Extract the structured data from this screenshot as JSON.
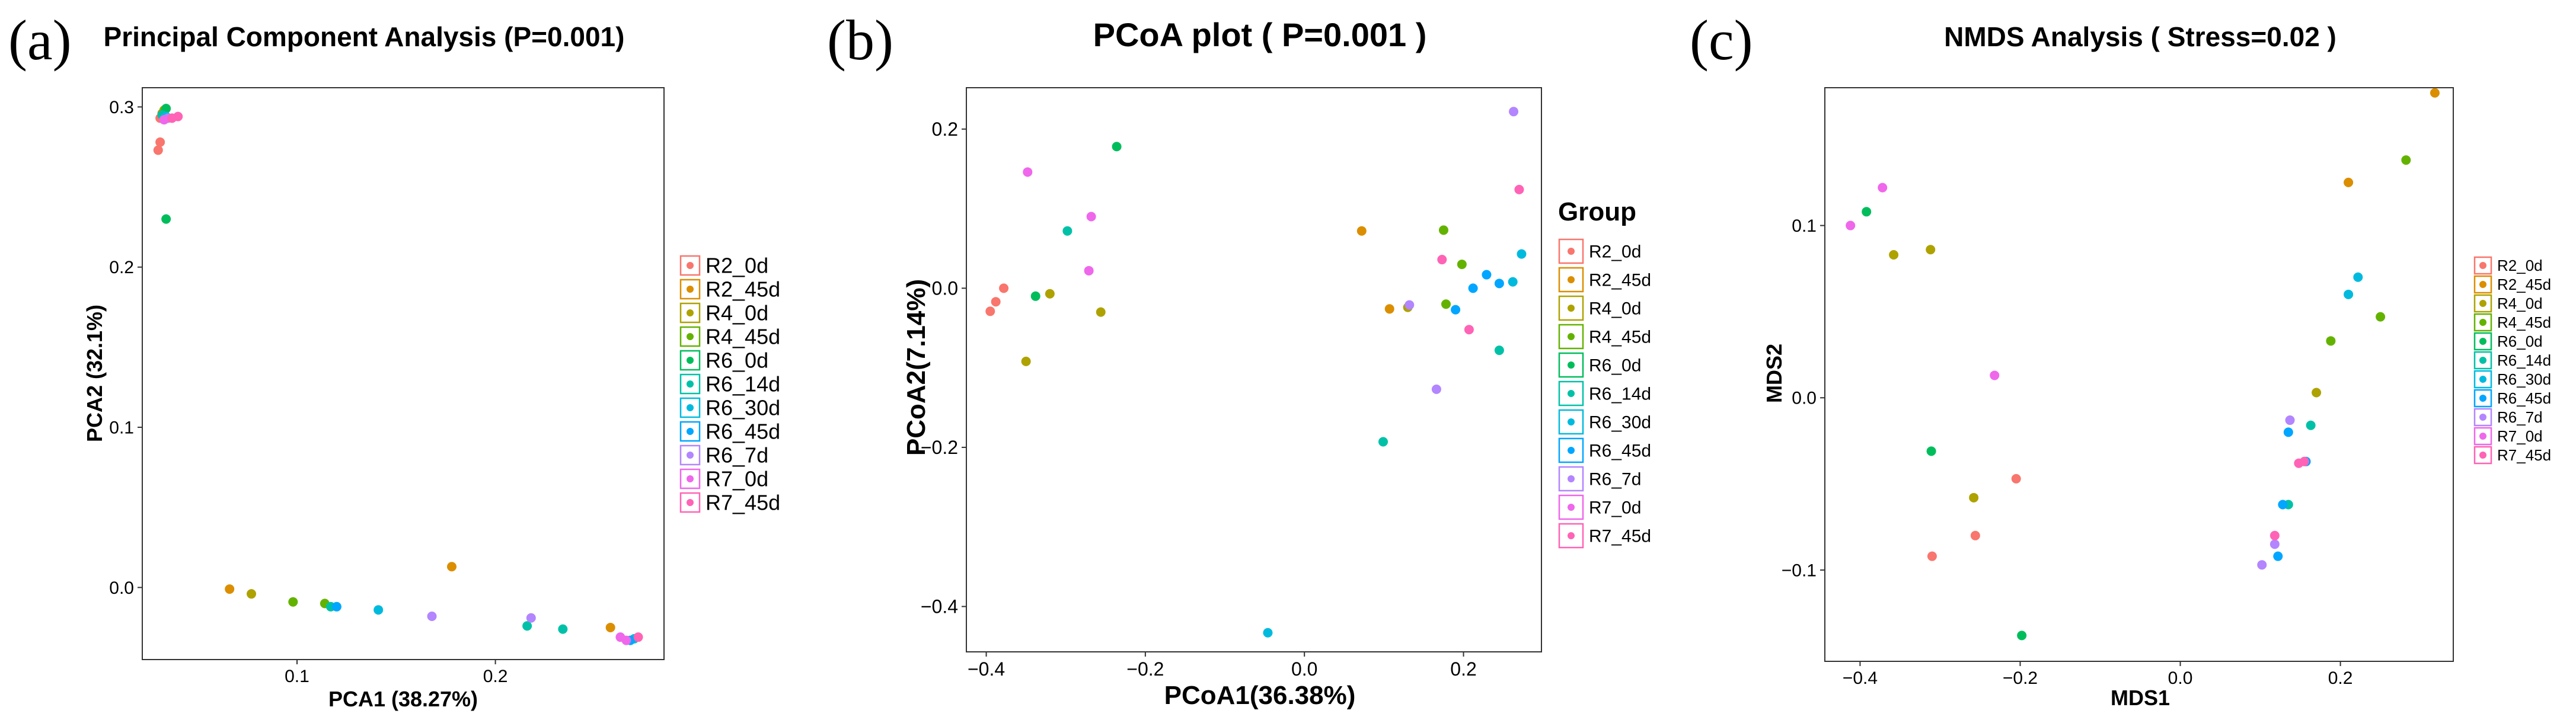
{
  "colors": {
    "R2_0d": "#F8766D",
    "R2_45d": "#DB8E00",
    "R4_0d": "#AEA200",
    "R4_45d": "#64B200",
    "R6_0d": "#00BD5C",
    "R6_14d": "#00C1A7",
    "R6_30d": "#00BADE",
    "R6_45d": "#00A6FF",
    "R6_7d": "#B385FF",
    "R7_0d": "#EF67EB",
    "R7_45d": "#FF63B6"
  },
  "chart_data": [
    {
      "panel_label": "(a)",
      "type": "scatter",
      "title": "Principal Component Analysis (P=0.001)",
      "xlabel": "PCA1 (38.27%)",
      "ylabel": "PCA2 (32.1%)",
      "xlim": [
        0.022,
        0.285
      ],
      "ylim": [
        -0.045,
        0.312
      ],
      "xticks": [
        0.1,
        0.2
      ],
      "xtick_labels": [
        "0.1",
        "0.2"
      ],
      "yticks": [
        0.0,
        0.1,
        0.2,
        0.3
      ],
      "ytick_labels": [
        "0.0",
        "0.1",
        "0.2",
        "0.3"
      ],
      "legend_title": "",
      "legend_position": "right",
      "legend": [
        "R2_0d",
        "R2_45d",
        "R4_0d",
        "R4_45d",
        "R6_0d",
        "R6_14d",
        "R6_30d",
        "R6_45d",
        "R6_7d",
        "R7_0d",
        "R7_45d"
      ],
      "points": [
        {
          "x": 0.03,
          "y": 0.273,
          "group": "R2_0d"
        },
        {
          "x": 0.031,
          "y": 0.278,
          "group": "R2_0d"
        },
        {
          "x": 0.031,
          "y": 0.293,
          "group": "R2_0d"
        },
        {
          "x": 0.032,
          "y": 0.296,
          "group": "R2_45d"
        },
        {
          "x": 0.033,
          "y": 0.298,
          "group": "R4_0d"
        },
        {
          "x": 0.033,
          "y": 0.297,
          "group": "R4_45d"
        },
        {
          "x": 0.034,
          "y": 0.299,
          "group": "R6_0d"
        },
        {
          "x": 0.034,
          "y": 0.23,
          "group": "R6_0d"
        },
        {
          "x": 0.032,
          "y": 0.295,
          "group": "R6_14d"
        },
        {
          "x": 0.034,
          "y": 0.294,
          "group": "R6_30d"
        },
        {
          "x": 0.035,
          "y": 0.293,
          "group": "R6_7d"
        },
        {
          "x": 0.033,
          "y": 0.292,
          "group": "R7_0d"
        },
        {
          "x": 0.037,
          "y": 0.293,
          "group": "R7_45d"
        },
        {
          "x": 0.04,
          "y": 0.294,
          "group": "R7_45d"
        },
        {
          "x": 0.066,
          "y": -0.001,
          "group": "R2_45d"
        },
        {
          "x": 0.178,
          "y": 0.013,
          "group": "R2_45d"
        },
        {
          "x": 0.258,
          "y": -0.025,
          "group": "R2_45d"
        },
        {
          "x": 0.077,
          "y": -0.004,
          "group": "R4_0d"
        },
        {
          "x": 0.098,
          "y": -0.009,
          "group": "R4_45d"
        },
        {
          "x": 0.114,
          "y": -0.01,
          "group": "R4_45d"
        },
        {
          "x": 0.117,
          "y": -0.012,
          "group": "R6_14d"
        },
        {
          "x": 0.216,
          "y": -0.024,
          "group": "R6_14d"
        },
        {
          "x": 0.234,
          "y": -0.026,
          "group": "R6_14d"
        },
        {
          "x": 0.141,
          "y": -0.014,
          "group": "R6_30d"
        },
        {
          "x": 0.27,
          "y": -0.032,
          "group": "R6_30d"
        },
        {
          "x": 0.12,
          "y": -0.012,
          "group": "R6_45d"
        },
        {
          "x": 0.268,
          "y": -0.033,
          "group": "R6_45d"
        },
        {
          "x": 0.168,
          "y": -0.018,
          "group": "R6_7d"
        },
        {
          "x": 0.218,
          "y": -0.019,
          "group": "R6_7d"
        },
        {
          "x": 0.263,
          "y": -0.031,
          "group": "R7_0d"
        },
        {
          "x": 0.266,
          "y": -0.033,
          "group": "R7_0d"
        },
        {
          "x": 0.272,
          "y": -0.031,
          "group": "R7_45d"
        }
      ]
    },
    {
      "panel_label": "(b)",
      "type": "scatter",
      "title": "PCoA plot ( P=0.001 )",
      "xlabel": "PCoA1(36.38%)",
      "ylabel": "PCoA2(7.14%)",
      "xlim": [
        -0.425,
        0.298
      ],
      "ylim": [
        -0.457,
        0.252
      ],
      "xticks": [
        -0.4,
        -0.2,
        0.0,
        0.2
      ],
      "xtick_labels": [
        "−0.4",
        "−0.2",
        "0.0",
        "0.2"
      ],
      "yticks": [
        -0.4,
        -0.2,
        0.0,
        0.2
      ],
      "ytick_labels": [
        "−0.4",
        "−0.2",
        "0.0",
        "0.2"
      ],
      "legend_title": "Group",
      "legend_position": "right",
      "legend": [
        "R2_0d",
        "R2_45d",
        "R4_0d",
        "R4_45d",
        "R6_0d",
        "R6_14d",
        "R6_30d",
        "R6_45d",
        "R6_7d",
        "R7_0d",
        "R7_45d"
      ],
      "points": [
        {
          "x": -0.395,
          "y": -0.029,
          "group": "R2_0d"
        },
        {
          "x": -0.388,
          "y": -0.017,
          "group": "R2_0d"
        },
        {
          "x": -0.378,
          "y": 0.0,
          "group": "R2_0d"
        },
        {
          "x": 0.072,
          "y": 0.072,
          "group": "R2_45d"
        },
        {
          "x": 0.107,
          "y": -0.026,
          "group": "R2_45d"
        },
        {
          "x": -0.35,
          "y": -0.092,
          "group": "R4_0d"
        },
        {
          "x": -0.32,
          "y": -0.007,
          "group": "R4_0d"
        },
        {
          "x": -0.256,
          "y": -0.03,
          "group": "R4_0d"
        },
        {
          "x": 0.13,
          "y": -0.024,
          "group": "R4_0d"
        },
        {
          "x": 0.175,
          "y": 0.073,
          "group": "R4_45d"
        },
        {
          "x": 0.178,
          "y": -0.02,
          "group": "R4_45d"
        },
        {
          "x": 0.198,
          "y": 0.03,
          "group": "R4_45d"
        },
        {
          "x": -0.338,
          "y": -0.01,
          "group": "R6_0d"
        },
        {
          "x": -0.236,
          "y": 0.178,
          "group": "R6_0d"
        },
        {
          "x": -0.298,
          "y": 0.072,
          "group": "R6_14d"
        },
        {
          "x": 0.099,
          "y": -0.193,
          "group": "R6_14d"
        },
        {
          "x": 0.245,
          "y": -0.078,
          "group": "R6_14d"
        },
        {
          "x": -0.046,
          "y": -0.433,
          "group": "R6_30d"
        },
        {
          "x": 0.262,
          "y": 0.008,
          "group": "R6_30d"
        },
        {
          "x": 0.273,
          "y": 0.043,
          "group": "R6_30d"
        },
        {
          "x": 0.19,
          "y": -0.027,
          "group": "R6_45d"
        },
        {
          "x": 0.212,
          "y": 0.0,
          "group": "R6_45d"
        },
        {
          "x": 0.229,
          "y": 0.017,
          "group": "R6_45d"
        },
        {
          "x": 0.245,
          "y": 0.006,
          "group": "R6_45d"
        },
        {
          "x": 0.132,
          "y": -0.021,
          "group": "R6_7d"
        },
        {
          "x": 0.166,
          "y": -0.127,
          "group": "R6_7d"
        },
        {
          "x": 0.263,
          "y": 0.222,
          "group": "R6_7d"
        },
        {
          "x": -0.348,
          "y": 0.146,
          "group": "R7_0d"
        },
        {
          "x": -0.268,
          "y": 0.09,
          "group": "R7_0d"
        },
        {
          "x": -0.271,
          "y": 0.022,
          "group": "R7_0d"
        },
        {
          "x": 0.173,
          "y": 0.036,
          "group": "R7_45d"
        },
        {
          "x": 0.207,
          "y": -0.052,
          "group": "R7_45d"
        },
        {
          "x": 0.27,
          "y": 0.124,
          "group": "R7_45d"
        }
      ]
    },
    {
      "panel_label": "(c)",
      "type": "scatter",
      "title": "NMDS Analysis ( Stress=0.02 )",
      "xlabel": "MDS1",
      "ylabel": "MDS2",
      "xlim": [
        -0.444,
        0.341
      ],
      "ylim": [
        -0.153,
        0.18
      ],
      "xticks": [
        -0.4,
        -0.2,
        0.0,
        0.2
      ],
      "xtick_labels": [
        "−0.4",
        "−0.2",
        "0.0",
        "0.2"
      ],
      "yticks": [
        -0.1,
        0.0,
        0.1
      ],
      "ytick_labels": [
        "−0.1",
        "0.0",
        "0.1"
      ],
      "legend_title": "",
      "legend_position": "right",
      "legend": [
        "R2_0d",
        "R2_45d",
        "R4_0d",
        "R4_45d",
        "R6_0d",
        "R6_14d",
        "R6_30d",
        "R6_45d",
        "R6_7d",
        "R7_0d",
        "R7_45d"
      ],
      "points": [
        {
          "x": -0.31,
          "y": -0.092,
          "group": "R2_0d"
        },
        {
          "x": -0.256,
          "y": -0.08,
          "group": "R2_0d"
        },
        {
          "x": -0.205,
          "y": -0.047,
          "group": "R2_0d"
        },
        {
          "x": 0.21,
          "y": 0.125,
          "group": "R2_45d"
        },
        {
          "x": 0.318,
          "y": 0.177,
          "group": "R2_45d"
        },
        {
          "x": -0.358,
          "y": 0.083,
          "group": "R4_0d"
        },
        {
          "x": -0.312,
          "y": 0.086,
          "group": "R4_0d"
        },
        {
          "x": -0.258,
          "y": -0.058,
          "group": "R4_0d"
        },
        {
          "x": 0.17,
          "y": 0.003,
          "group": "R4_0d"
        },
        {
          "x": 0.188,
          "y": 0.033,
          "group": "R4_45d"
        },
        {
          "x": 0.25,
          "y": 0.047,
          "group": "R4_45d"
        },
        {
          "x": 0.282,
          "y": 0.138,
          "group": "R4_45d"
        },
        {
          "x": -0.392,
          "y": 0.108,
          "group": "R6_0d"
        },
        {
          "x": -0.311,
          "y": -0.031,
          "group": "R6_0d"
        },
        {
          "x": -0.198,
          "y": -0.138,
          "group": "R6_0d"
        },
        {
          "x": 0.135,
          "y": -0.062,
          "group": "R6_14d"
        },
        {
          "x": 0.163,
          "y": -0.016,
          "group": "R6_14d"
        },
        {
          "x": 0.21,
          "y": 0.06,
          "group": "R6_30d"
        },
        {
          "x": 0.222,
          "y": 0.07,
          "group": "R6_30d"
        },
        {
          "x": 0.122,
          "y": -0.092,
          "group": "R6_45d"
        },
        {
          "x": 0.128,
          "y": -0.062,
          "group": "R6_45d"
        },
        {
          "x": 0.135,
          "y": -0.02,
          "group": "R6_45d"
        },
        {
          "x": 0.157,
          "y": -0.037,
          "group": "R6_45d"
        },
        {
          "x": 0.102,
          "y": -0.097,
          "group": "R6_7d"
        },
        {
          "x": 0.118,
          "y": -0.085,
          "group": "R6_7d"
        },
        {
          "x": 0.137,
          "y": -0.013,
          "group": "R6_7d"
        },
        {
          "x": -0.412,
          "y": 0.1,
          "group": "R7_0d"
        },
        {
          "x": -0.372,
          "y": 0.122,
          "group": "R7_0d"
        },
        {
          "x": -0.232,
          "y": 0.013,
          "group": "R7_0d"
        },
        {
          "x": 0.118,
          "y": -0.08,
          "group": "R7_45d"
        },
        {
          "x": 0.148,
          "y": -0.038,
          "group": "R7_45d"
        },
        {
          "x": 0.155,
          "y": -0.037,
          "group": "R7_45d"
        }
      ]
    }
  ]
}
